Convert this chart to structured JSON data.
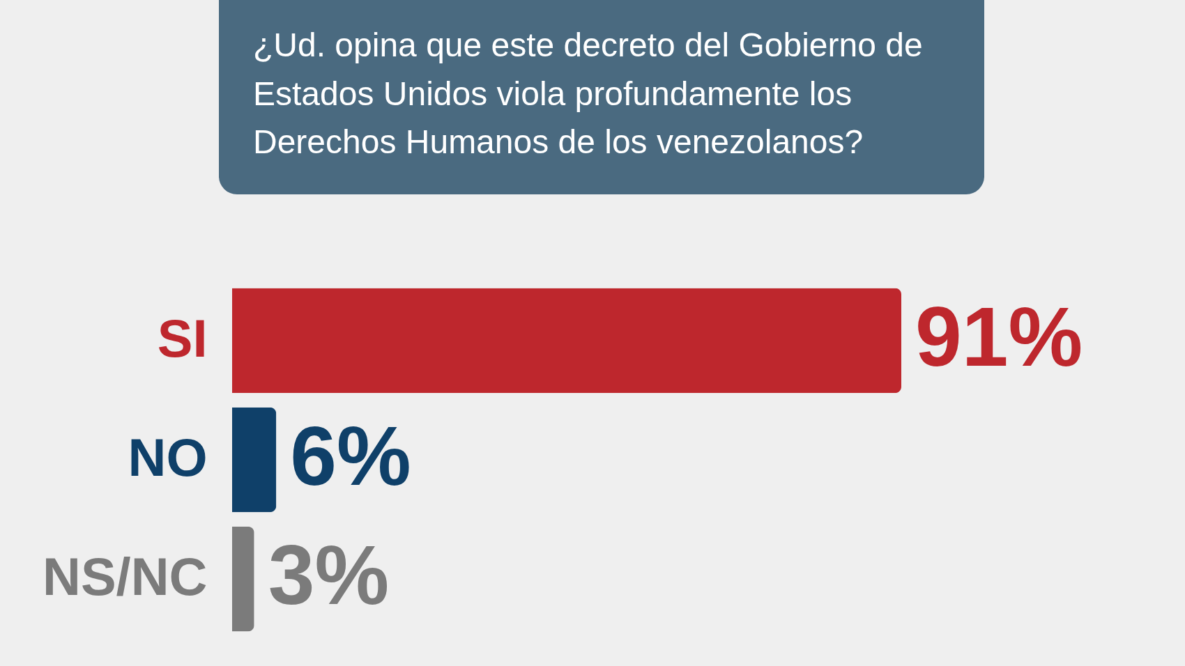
{
  "chart_data": {
    "type": "bar",
    "orientation": "horizontal",
    "title": "¿Ud. opina que este decreto del Gobierno de Estados Unidos viola profundamente los Derechos Humanos de los venezolanos?",
    "categories": [
      "SI",
      "NO",
      "NS/NC"
    ],
    "values": [
      91,
      6,
      3
    ],
    "colors": [
      "#be272d",
      "#0f4069",
      "#7b7b7b"
    ],
    "value_labels": [
      "91%",
      "6%",
      "3%"
    ]
  }
}
